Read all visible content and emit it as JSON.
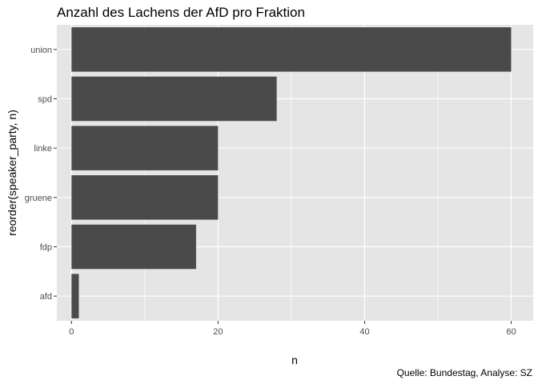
{
  "chart_data": {
    "type": "bar",
    "orientation": "horizontal",
    "title": "Anzahl des Lachens der AfD pro Fraktion",
    "xlabel": "n",
    "ylabel": "reorder(speaker_party, n)",
    "caption": "Quelle: Bundestag, Analyse: SZ",
    "categories": [
      "union",
      "spd",
      "linke",
      "gruene",
      "fdp",
      "afd"
    ],
    "values": [
      60,
      28,
      20,
      20,
      17,
      1
    ],
    "xlim": [
      -2,
      63
    ],
    "xticks": [
      0,
      20,
      40,
      60
    ],
    "xtick_labels": [
      "0",
      "20",
      "40",
      "60"
    ],
    "grid": true,
    "bar_color": "#4a4a4a",
    "panel_color": "#e5e5e5",
    "gridline_color": "#ffffff"
  }
}
